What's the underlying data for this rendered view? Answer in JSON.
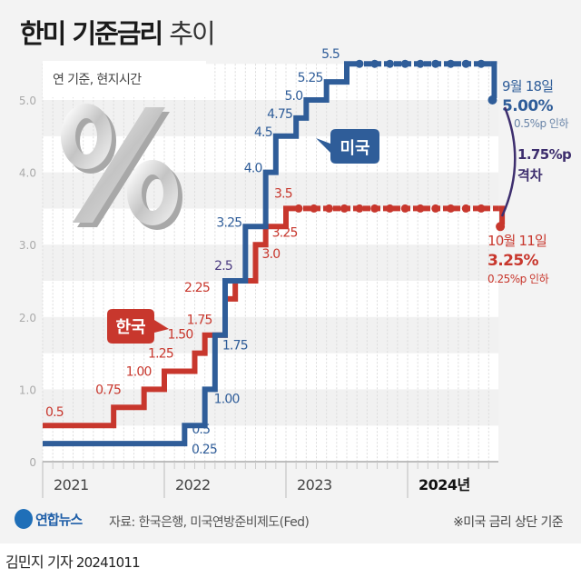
{
  "title": {
    "bold": "한미 기준금리",
    "light": "추이"
  },
  "note_basis": "연 기준, 현지시간",
  "decor_symbol": "%",
  "chart_data": {
    "type": "line",
    "step": true,
    "xlim": [
      "2021-01",
      "2024-10"
    ],
    "ylim": [
      0,
      5.5
    ],
    "yticks": [
      {
        "v": 0,
        "label": "0"
      },
      {
        "v": 1,
        "label": "1.0"
      },
      {
        "v": 2,
        "label": "2.0"
      },
      {
        "v": 3,
        "label": "3.0"
      },
      {
        "v": 4,
        "label": "4.0"
      },
      {
        "v": 5,
        "label": "5.0"
      }
    ],
    "xticks": [
      {
        "d": "2021-01",
        "label": "2021"
      },
      {
        "d": "2022-01",
        "label": "2022"
      },
      {
        "d": "2023-01",
        "label": "2023"
      },
      {
        "d": "2024-01",
        "label": "2024년"
      }
    ],
    "grid": "horizontal bands, monthly dashed verticals",
    "series": [
      {
        "name": "한국",
        "color": "#c8372d",
        "points": [
          [
            "2021-01",
            0.5,
            "0.5"
          ],
          [
            "2021-08",
            0.75,
            "0.75"
          ],
          [
            "2021-11",
            1.0,
            "1.00"
          ],
          [
            "2022-01",
            1.25,
            "1.25"
          ],
          [
            "2022-04",
            1.5,
            "1.50"
          ],
          [
            "2022-05",
            1.75,
            "1.75"
          ],
          [
            "2022-07",
            2.25,
            "2.25"
          ],
          [
            "2022-08",
            2.5,
            "2.5"
          ],
          [
            "2022-10",
            3.0,
            "3.0"
          ],
          [
            "2022-11",
            3.25,
            "3.25"
          ],
          [
            "2023-01",
            3.5,
            "3.5"
          ],
          [
            "2024-10-11",
            3.25,
            ""
          ]
        ],
        "end": {
          "date": "10월 11일",
          "value": "3.25%",
          "change": "0.25%p 인하"
        }
      },
      {
        "name": "미국",
        "color": "#2f5d99",
        "points": [
          [
            "2021-01",
            0.25,
            "0.25"
          ],
          [
            "2022-03",
            0.5,
            "0.5"
          ],
          [
            "2022-05",
            1.0,
            "1.00"
          ],
          [
            "2022-06",
            1.75,
            "1.75"
          ],
          [
            "2022-07",
            2.5,
            ""
          ],
          [
            "2022-09",
            3.25,
            "3.25"
          ],
          [
            "2022-11",
            4.0,
            "4.0"
          ],
          [
            "2022-12",
            4.5,
            "4.5"
          ],
          [
            "2023-02",
            4.75,
            "4.75"
          ],
          [
            "2023-03",
            5.0,
            "5.0"
          ],
          [
            "2023-05",
            5.25,
            "5.25"
          ],
          [
            "2023-07",
            5.5,
            "5.5"
          ],
          [
            "2024-09-18",
            5.0,
            ""
          ]
        ],
        "end": {
          "date": "9월 18일",
          "value": "5.00%",
          "change": "0.5%p 인하"
        }
      }
    ],
    "gap": {
      "value": "1.75%p",
      "label": "격차",
      "color": "#3d2e6e"
    },
    "shared_label": {
      "text": "2.5",
      "color": "#4a3a80"
    }
  },
  "footer": {
    "logo": "연합뉴스",
    "source": "자료: 한국은행, 미국연방준비제도(Fed)",
    "note": "※미국 금리 상단 기준"
  },
  "byline": {
    "author": "김민지 기자",
    "date": "20241011"
  }
}
